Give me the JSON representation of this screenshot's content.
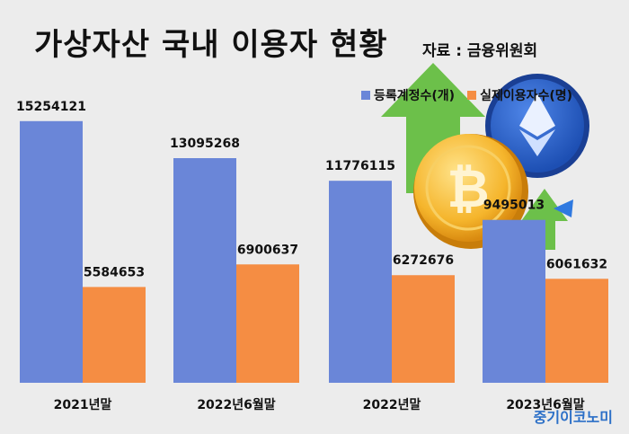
{
  "chart_data": {
    "type": "bar",
    "title": "가상자산 국내 이용자 현황",
    "source": "자료 : 금융위원회",
    "categories": [
      "2021년말",
      "2022년6월말",
      "2022년말",
      "2023년6월말"
    ],
    "series": [
      {
        "name": "등록계정수(개)",
        "color": "#6a86d8",
        "values": [
          15254121,
          13095268,
          11776115,
          9495013
        ]
      },
      {
        "name": "실제이용자수(명)",
        "color": "#f58d43",
        "values": [
          5584653,
          6900637,
          6272676,
          6061632
        ]
      }
    ],
    "ylim": [
      0,
      16500000
    ],
    "grid": false,
    "legend_position": "top-right"
  },
  "branding": {
    "logo": "중기이코노미"
  }
}
